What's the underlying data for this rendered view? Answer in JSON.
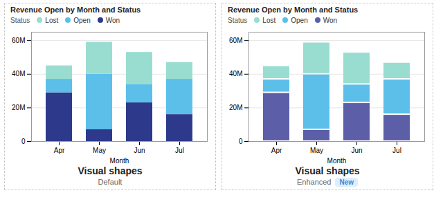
{
  "chart_data": [
    {
      "type": "bar",
      "title": "Revenue Open by Month and Status",
      "xlabel": "Month",
      "categories": [
        "Apr",
        "May",
        "Jun",
        "Jul"
      ],
      "series": [
        {
          "name": "Won",
          "color": "#2d3a8c",
          "values": [
            29,
            7,
            23,
            16
          ]
        },
        {
          "name": "Open",
          "color": "#5bbfea",
          "values": [
            8,
            33,
            11,
            21
          ]
        },
        {
          "name": "Lost",
          "color": "#99ddd0",
          "values": [
            8,
            19,
            19,
            10
          ]
        }
      ],
      "stacked": true,
      "grid": true,
      "legend": "top",
      "legend_title": "Status",
      "ylim": [
        0,
        65
      ],
      "yticks": [
        0,
        {
          "value": 20,
          "label": "20M"
        },
        {
          "value": 40,
          "label": "40M"
        },
        {
          "value": 60,
          "label": "60M"
        }
      ],
      "annotations": [
        "Visual shapes",
        "Default"
      ]
    },
    {
      "type": "bar",
      "title": "Revenue Open by Month and Status",
      "xlabel": "Month",
      "categories": [
        "Apr",
        "May",
        "Jun",
        "Jul"
      ],
      "series": [
        {
          "name": "Won",
          "color": "#5c5fa8",
          "values": [
            29,
            7,
            23,
            16
          ]
        },
        {
          "name": "Open",
          "color": "#5bbfea",
          "values": [
            8,
            33,
            11,
            21
          ]
        },
        {
          "name": "Lost",
          "color": "#99ddd0",
          "values": [
            8,
            19,
            19,
            10
          ]
        }
      ],
      "stacked": true,
      "grid": true,
      "legend": "top",
      "legend_title": "Status",
      "ylim": [
        0,
        65
      ],
      "yticks": [
        0,
        {
          "value": 20,
          "label": "20M"
        },
        {
          "value": 40,
          "label": "40M"
        },
        {
          "value": 60,
          "label": "60M"
        }
      ],
      "annotations": [
        "Visual shapes",
        "Enhanced",
        "New"
      ]
    }
  ]
}
